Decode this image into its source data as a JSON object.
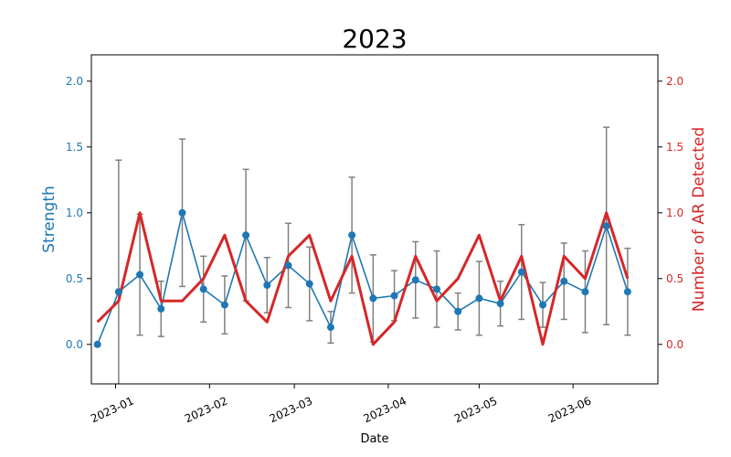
{
  "chart_data": {
    "type": "line",
    "title": "2023",
    "xlabel": "Date",
    "ylabel_left": "Strength",
    "ylabel_right": "Number of AR Detected",
    "xlim": [
      "2022-12-24",
      "2023-06-29"
    ],
    "ylim_left": [
      -0.3,
      2.2
    ],
    "ylim_right": [
      -0.3,
      2.2
    ],
    "x_ticks": [
      "2023-01",
      "2023-02",
      "2023-03",
      "2023-04",
      "2023-05",
      "2023-06"
    ],
    "y_ticks_left": [
      "0.0",
      "0.5",
      "1.0",
      "1.5",
      "2.0"
    ],
    "y_ticks_right": [
      "0.0",
      "0.5",
      "1.0",
      "1.5",
      "2.0"
    ],
    "grid": false,
    "colors": {
      "strength": "#1f77b4",
      "ar": "#d62728",
      "errorbar": "#808080"
    },
    "x": [
      "2022-12-26",
      "2023-01-02",
      "2023-01-09",
      "2023-01-16",
      "2023-01-23",
      "2023-01-30",
      "2023-02-06",
      "2023-02-13",
      "2023-02-20",
      "2023-02-27",
      "2023-03-06",
      "2023-03-13",
      "2023-03-20",
      "2023-03-27",
      "2023-04-03",
      "2023-04-10",
      "2023-04-17",
      "2023-04-24",
      "2023-05-01",
      "2023-05-08",
      "2023-05-15",
      "2023-05-22",
      "2023-05-29",
      "2023-06-05",
      "2023-06-12",
      "2023-06-19"
    ],
    "series": [
      {
        "axis": "left",
        "values": [
          0.0,
          0.4,
          0.53,
          0.27,
          1.0,
          0.42,
          0.3,
          0.83,
          0.45,
          0.6,
          0.46,
          0.13,
          0.83,
          0.35,
          0.37,
          0.49,
          0.42,
          0.25,
          0.35,
          0.31,
          0.55,
          0.3,
          0.48,
          0.4,
          0.9,
          0.4
        ],
        "errors": [
          null,
          1.0,
          0.46,
          0.21,
          0.56,
          0.25,
          0.22,
          0.5,
          0.21,
          0.32,
          0.28,
          0.12,
          0.44,
          0.33,
          0.19,
          0.29,
          0.29,
          0.14,
          0.28,
          0.17,
          0.36,
          0.17,
          0.29,
          0.31,
          0.75,
          0.33
        ]
      },
      {
        "axis": "right",
        "values": [
          0.17,
          0.33,
          1.0,
          0.33,
          0.33,
          0.5,
          0.83,
          0.33,
          0.17,
          0.67,
          0.83,
          0.33,
          0.67,
          0.0,
          0.17,
          0.67,
          0.33,
          0.5,
          0.83,
          0.33,
          0.67,
          0.0,
          0.67,
          0.5,
          1.0,
          0.5
        ]
      }
    ]
  }
}
